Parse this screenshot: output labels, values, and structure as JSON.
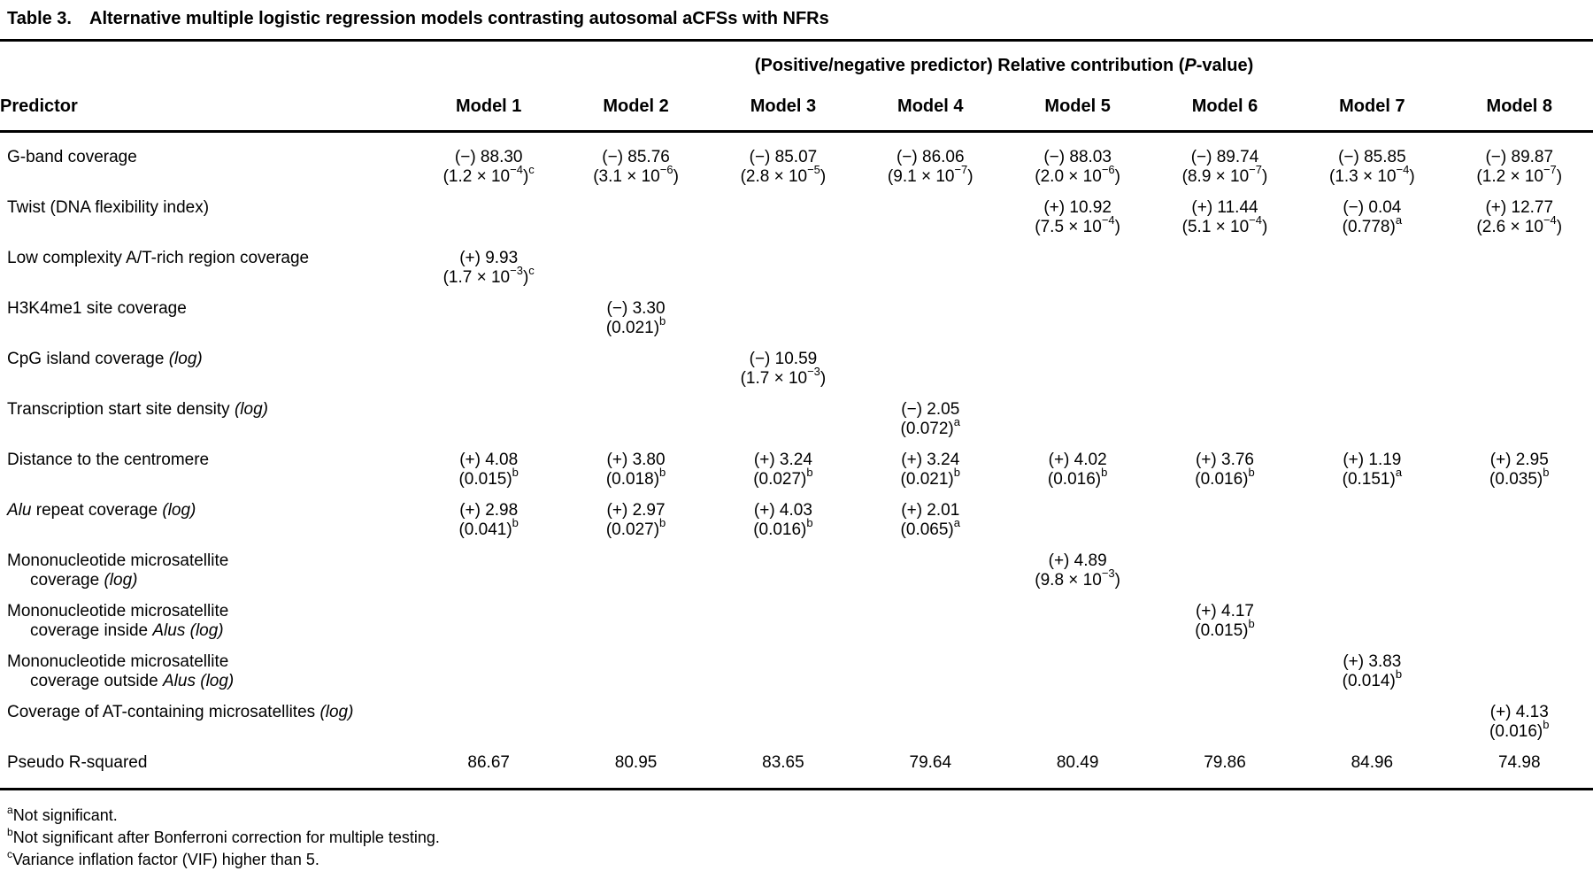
{
  "title": {
    "label": "Table 3.",
    "text": "Alternative multiple logistic regression models contrasting autosomal aCFSs with NFRs"
  },
  "table": {
    "span_header": "(Positive/negative predictor) Relative contribution (*P*-value)",
    "predictor_header": "Predictor",
    "model_headers": [
      "Model 1",
      "Model 2",
      "Model 3",
      "Model 4",
      "Model 5",
      "Model 6",
      "Model 7",
      "Model 8"
    ],
    "rows": [
      {
        "predictor": [
          "G-band coverage"
        ],
        "cells": [
          [
            "(−) 88.30",
            "(1.2 × 10^−4^)^c^"
          ],
          [
            "(−) 85.76",
            "(3.1 × 10^−6^)"
          ],
          [
            "(−) 85.07",
            "(2.8 × 10^−5^)"
          ],
          [
            "(−) 86.06",
            "(9.1 × 10^−7^)"
          ],
          [
            "(−) 88.03",
            "(2.0 × 10^−6^)"
          ],
          [
            "(−) 89.74",
            "(8.9 × 10^−7^)"
          ],
          [
            "(−) 85.85",
            "(1.3 × 10^−4^)"
          ],
          [
            "(−) 89.87",
            "(1.2 × 10^−7^)"
          ]
        ]
      },
      {
        "predictor": [
          "Twist (DNA flexibility index)"
        ],
        "cells": [
          null,
          null,
          null,
          null,
          [
            "(+) 10.92",
            "(7.5 × 10^−4^)"
          ],
          [
            "(+) 11.44",
            "(5.1 × 10^−4^)"
          ],
          [
            "(−) 0.04",
            "(0.778)^a^"
          ],
          [
            "(+) 12.77",
            "(2.6 × 10^−4^)"
          ]
        ]
      },
      {
        "predictor": [
          "Low complexity A/T-rich region coverage"
        ],
        "cells": [
          [
            "(+) 9.93",
            "(1.7 × 10^−3^)^c^"
          ],
          null,
          null,
          null,
          null,
          null,
          null,
          null
        ]
      },
      {
        "predictor": [
          "H3K4me1 site coverage"
        ],
        "cells": [
          null,
          [
            "(−) 3.30",
            "(0.021)^b^"
          ],
          null,
          null,
          null,
          null,
          null,
          null
        ]
      },
      {
        "predictor": [
          "CpG island coverage *(log)*"
        ],
        "cells": [
          null,
          null,
          [
            "(−) 10.59",
            "(1.7 × 10^−3^)"
          ],
          null,
          null,
          null,
          null,
          null
        ]
      },
      {
        "predictor": [
          "Transcription start site density *(log)*"
        ],
        "cells": [
          null,
          null,
          null,
          [
            "(−) 2.05",
            "(0.072)^a^"
          ],
          null,
          null,
          null,
          null
        ]
      },
      {
        "predictor": [
          "Distance to the centromere"
        ],
        "cells": [
          [
            "(+) 4.08",
            "(0.015)^b^"
          ],
          [
            "(+) 3.80",
            "(0.018)^b^"
          ],
          [
            "(+) 3.24",
            "(0.027)^b^"
          ],
          [
            "(+) 3.24",
            "(0.021)^b^"
          ],
          [
            "(+) 4.02",
            "(0.016)^b^"
          ],
          [
            "(+) 3.76",
            "(0.016)^b^"
          ],
          [
            "(+) 1.19",
            "(0.151)^a^"
          ],
          [
            "(+) 2.95",
            "(0.035)^b^"
          ]
        ]
      },
      {
        "predictor": [
          "*Alu* repeat coverage *(log)*"
        ],
        "cells": [
          [
            "(+) 2.98",
            "(0.041)^b^"
          ],
          [
            "(+) 2.97",
            "(0.027)^b^"
          ],
          [
            "(+) 4.03",
            "(0.016)^b^"
          ],
          [
            "(+) 2.01",
            "(0.065)^a^"
          ],
          null,
          null,
          null,
          null
        ]
      },
      {
        "predictor": [
          "Mononucleotide microsatellite",
          "coverage *(log)*"
        ],
        "cells": [
          null,
          null,
          null,
          null,
          [
            "(+) 4.89",
            "(9.8 × 10^−3^)"
          ],
          null,
          null,
          null
        ]
      },
      {
        "predictor": [
          "Mononucleotide microsatellite",
          "coverage inside *Alus* *(log)*"
        ],
        "cells": [
          null,
          null,
          null,
          null,
          null,
          [
            "(+) 4.17",
            "(0.015)^b^"
          ],
          null,
          null
        ]
      },
      {
        "predictor": [
          "Mononucleotide microsatellite",
          "coverage outside *Alus* *(log)*"
        ],
        "cells": [
          null,
          null,
          null,
          null,
          null,
          null,
          [
            "(+) 3.83",
            "(0.014)^b^"
          ],
          null
        ]
      },
      {
        "predictor": [
          "Coverage of AT-containing microsatellites *(log)*"
        ],
        "cells": [
          null,
          null,
          null,
          null,
          null,
          null,
          null,
          [
            "(+) 4.13",
            "(0.016)^b^"
          ]
        ]
      },
      {
        "predictor": [
          "Pseudo R-squared"
        ],
        "cells": [
          [
            "86.67"
          ],
          [
            "80.95"
          ],
          [
            "83.65"
          ],
          [
            "79.64"
          ],
          [
            "80.49"
          ],
          [
            "79.86"
          ],
          [
            "84.96"
          ],
          [
            "74.98"
          ]
        ]
      }
    ]
  },
  "footnotes": [
    {
      "marker": "a",
      "text": "Not significant."
    },
    {
      "marker": "b",
      "text": "Not significant after Bonferroni correction for multiple testing."
    },
    {
      "marker": "c",
      "text": "Variance inflation factor (VIF) higher than 5."
    }
  ]
}
